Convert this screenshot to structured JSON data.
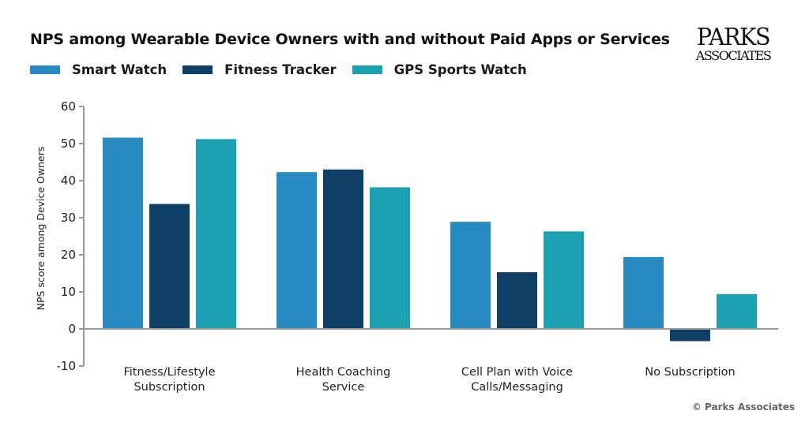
{
  "chart_data": {
    "type": "bar",
    "title": "NPS among Wearable Device Owners with and without Paid Apps or Services",
    "xlabel": "",
    "ylabel": "NPS score among Device Owners",
    "ylim": [
      -10,
      60
    ],
    "yticks": [
      60,
      50,
      40,
      30,
      20,
      10,
      0,
      -10
    ],
    "grid": false,
    "legend_position": "top-left",
    "categories": [
      [
        "Fitness/Lifestyle",
        "Subscription"
      ],
      [
        "Health Coaching",
        "Service"
      ],
      [
        "Cell Plan with Voice",
        "Calls/Messaging"
      ],
      [
        "No Subscription"
      ]
    ],
    "series": [
      {
        "name": "Smart Watch",
        "color": "#2A8BC3",
        "values": [
          51.6,
          42.3,
          28.9,
          19.4
        ]
      },
      {
        "name": "Fitness Tracker",
        "color": "#0E3F66",
        "values": [
          33.7,
          43.0,
          15.3,
          -3.3
        ]
      },
      {
        "name": "GPS Sports Watch",
        "color": "#1BA1B1",
        "values": [
          51.2,
          38.2,
          26.3,
          9.4
        ]
      }
    ]
  },
  "branding": {
    "logo_top": "PARKS",
    "logo_bottom": "ASSOCIATES",
    "copyright": "© Parks Associates"
  }
}
